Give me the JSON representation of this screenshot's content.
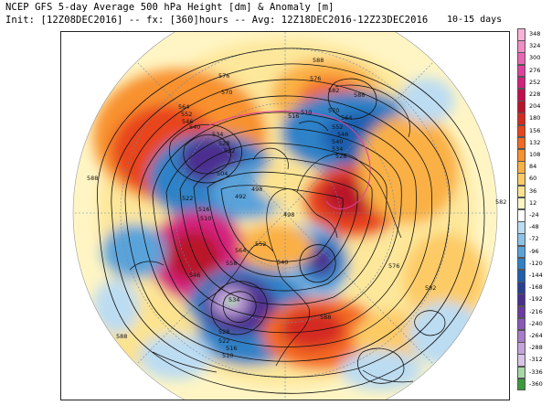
{
  "header": {
    "line1": "NCEP GFS 5-day Average 500 hPa Height [dm] & Anomaly [m]",
    "line2": "Init: [12Z08DEC2016] -- fx: [360]hours -- Avg: 12Z18DEC2016-12Z23DEC2016",
    "days": "10-15 days"
  },
  "colorbar": {
    "levels": [
      {
        "label": "348",
        "color": "#f7b3d6"
      },
      {
        "label": "324",
        "color": "#f08dc5"
      },
      {
        "label": "300",
        "color": "#e966b4"
      },
      {
        "label": "276",
        "color": "#e0419f"
      },
      {
        "label": "252",
        "color": "#d4207f"
      },
      {
        "label": "228",
        "color": "#c40d4f"
      },
      {
        "label": "204",
        "color": "#b9142a"
      },
      {
        "label": "180",
        "color": "#d42a20"
      },
      {
        "label": "156",
        "color": "#e8441c"
      },
      {
        "label": "132",
        "color": "#f46a22"
      },
      {
        "label": "108",
        "color": "#f8912f"
      },
      {
        "label": "84",
        "color": "#fab045"
      },
      {
        "label": "60",
        "color": "#fdcb66"
      },
      {
        "label": "36",
        "color": "#fde38f"
      },
      {
        "label": "12",
        "color": "#fff5c4"
      },
      {
        "label": "-24",
        "color": "#ffffff"
      },
      {
        "label": "-48",
        "color": "#bcdcf2"
      },
      {
        "label": "-72",
        "color": "#8cc2e8"
      },
      {
        "label": "-96",
        "color": "#5aa3da"
      },
      {
        "label": "-120",
        "color": "#2f82c7"
      },
      {
        "label": "-144",
        "color": "#1f5fae"
      },
      {
        "label": "-168",
        "color": "#2a3f92"
      },
      {
        "label": "-192",
        "color": "#4b2f8f"
      },
      {
        "label": "-216",
        "color": "#6a3aa0"
      },
      {
        "label": "-240",
        "color": "#8a58b6"
      },
      {
        "label": "-264",
        "color": "#a77cc9"
      },
      {
        "label": "-288",
        "color": "#c3a4da"
      },
      {
        "label": "-312",
        "color": "#d7c4e6"
      },
      {
        "label": "-336",
        "color": "#a8d8a8"
      },
      {
        "label": "-360",
        "color": "#3c9a3c"
      }
    ]
  },
  "map": {
    "contour_labels": [
      "588",
      "576",
      "570",
      "564",
      "552",
      "546",
      "540",
      "534",
      "528",
      "522",
      "516",
      "510",
      "504",
      "498",
      "492",
      "588",
      "576",
      "582",
      "588",
      "570",
      "564",
      "552",
      "546",
      "540",
      "534",
      "528",
      "522",
      "516",
      "510",
      "498",
      "564",
      "558",
      "546",
      "540",
      "534",
      "528",
      "522",
      "516",
      "510",
      "576",
      "582",
      "588",
      "552",
      "582",
      "588"
    ]
  }
}
